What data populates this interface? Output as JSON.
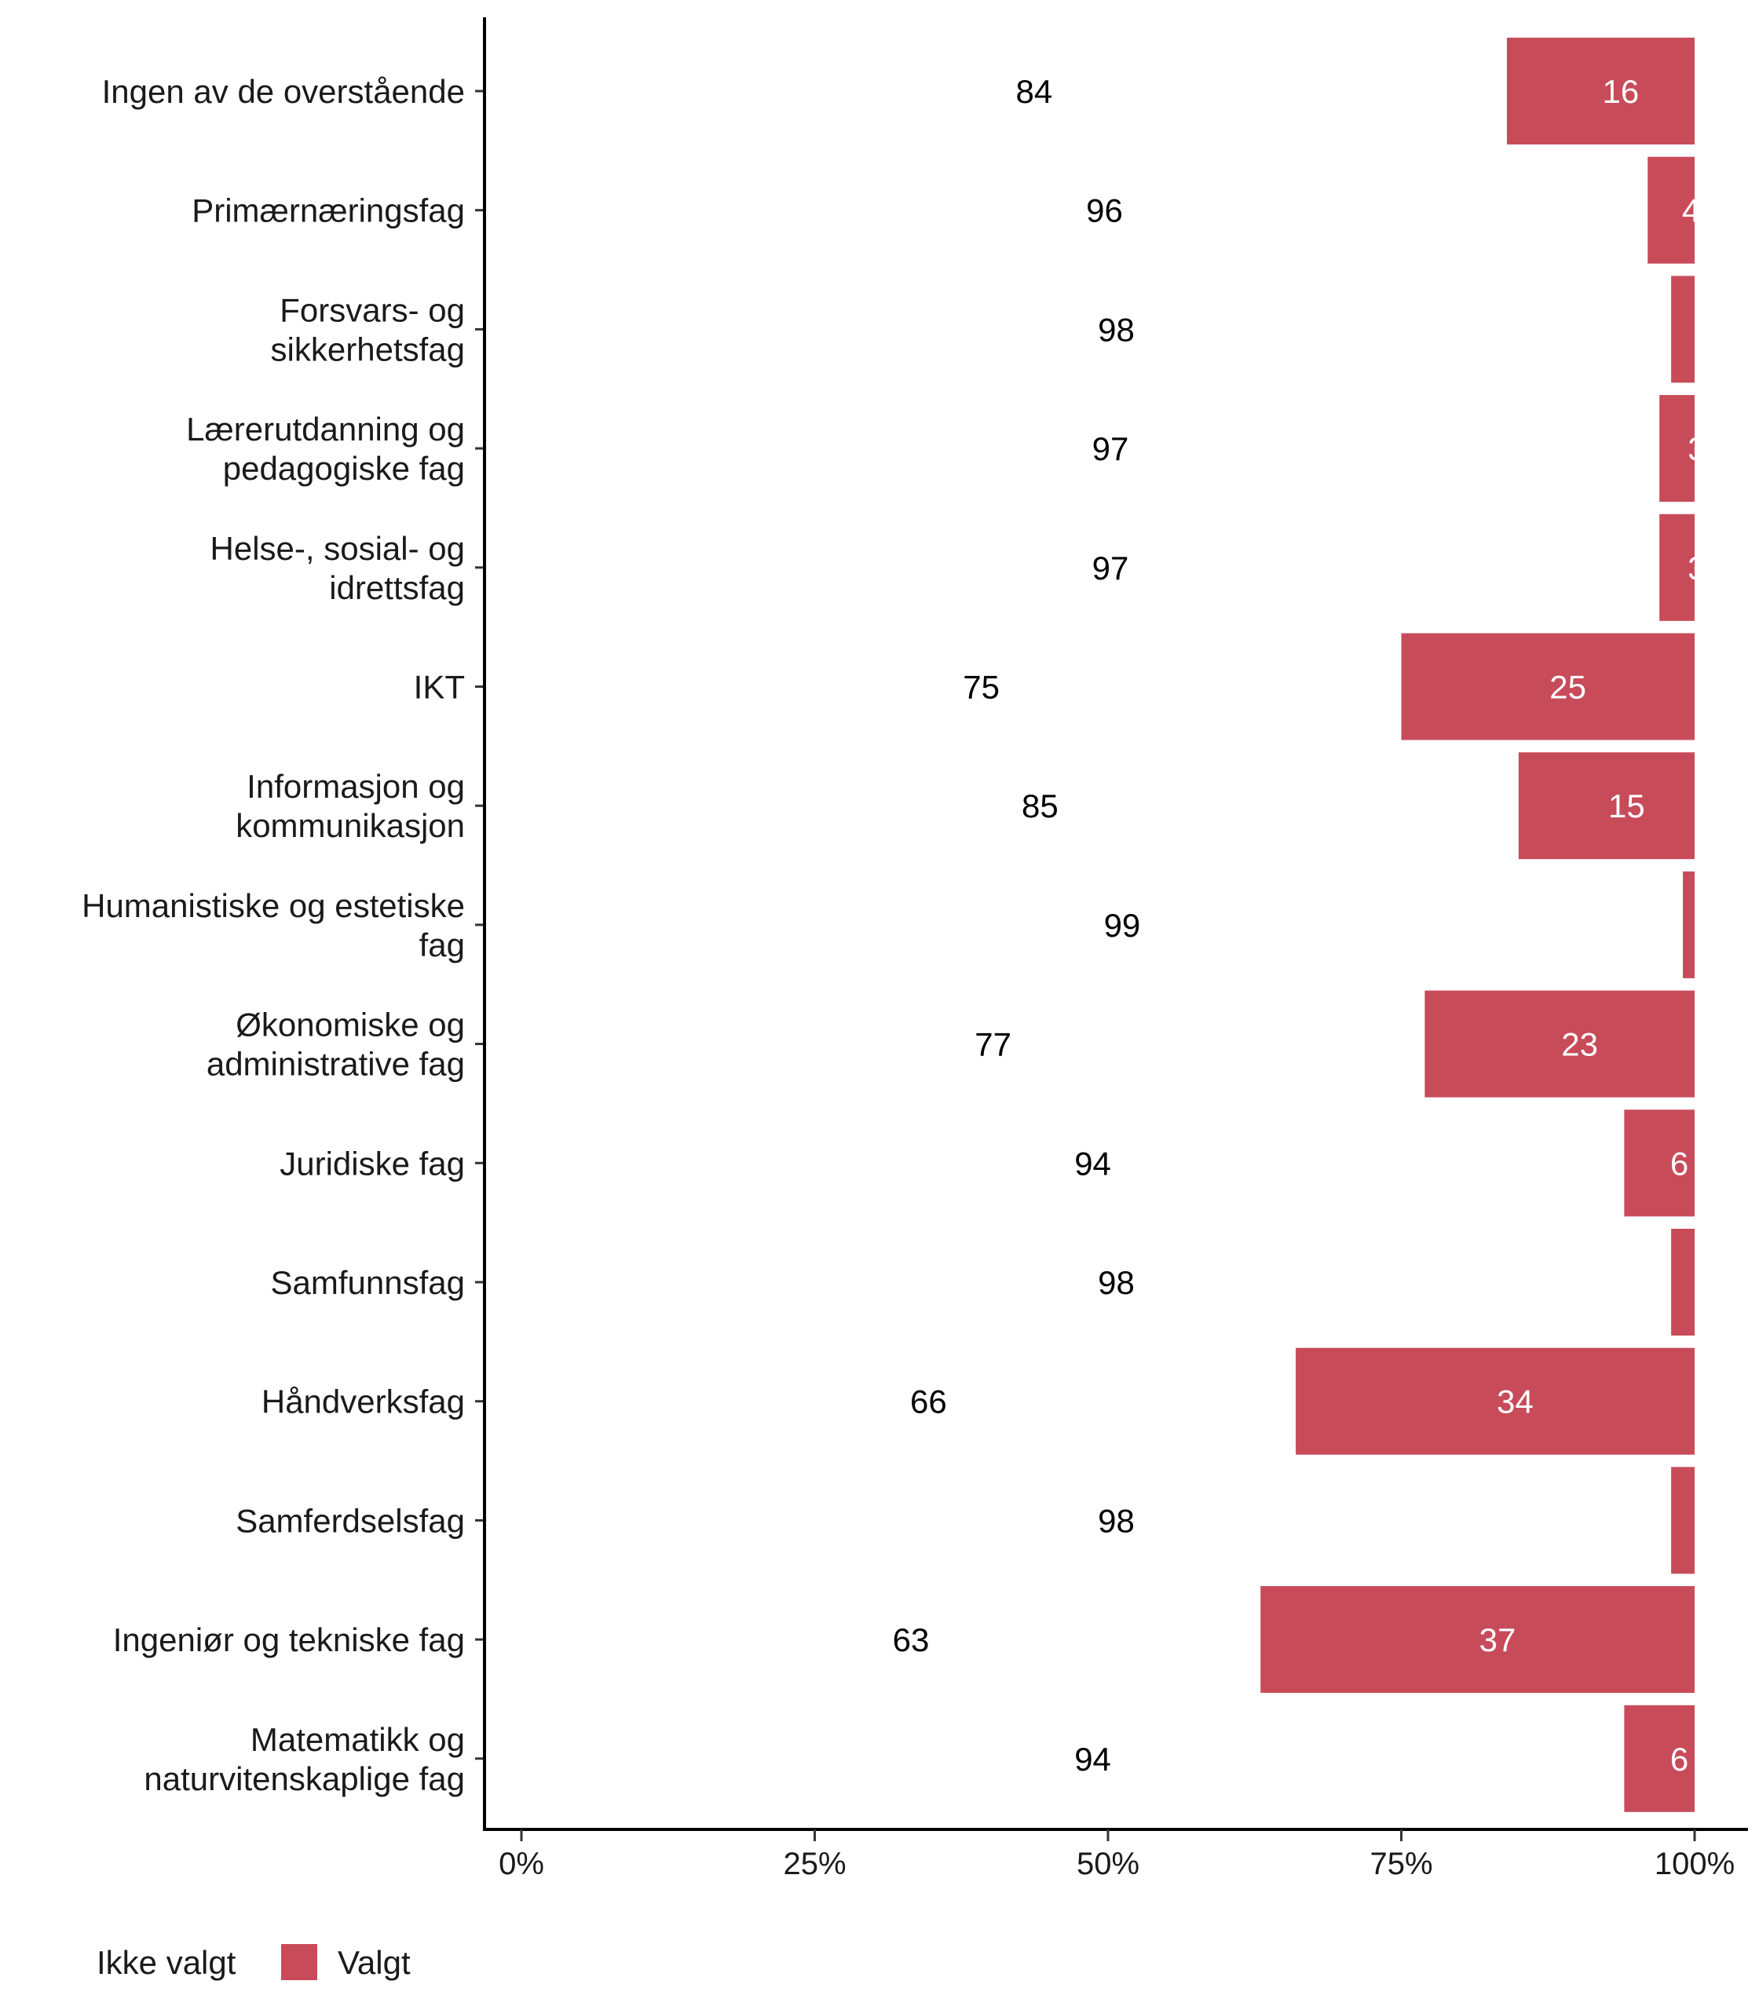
{
  "chart_data": {
    "type": "bar",
    "orientation": "horizontal",
    "stacked": "percent",
    "title": "",
    "xlabel": "",
    "ylabel": "",
    "xlim": [
      0,
      100
    ],
    "x_ticks": [
      "0%",
      "25%",
      "50%",
      "75%",
      "100%"
    ],
    "grid": false,
    "legend_position": "bottom-left",
    "categories": [
      [
        "Ingen av de overstående"
      ],
      [
        "Primærnæringsfag"
      ],
      [
        "Forsvars- og",
        "sikkerhetsfag"
      ],
      [
        "Lærerutdanning og",
        "pedagogiske fag"
      ],
      [
        "Helse-, sosial- og",
        "idrettsfag"
      ],
      [
        "IKT"
      ],
      [
        "Informasjon og",
        "kommunikasjon"
      ],
      [
        "Humanistiske og estetiske",
        "fag"
      ],
      [
        "Økonomiske og",
        "administrative fag"
      ],
      [
        "Juridiske fag"
      ],
      [
        "Samfunnsfag"
      ],
      [
        "Håndverksfag"
      ],
      [
        "Samferdselsfag"
      ],
      [
        "Ingeniør og tekniske fag"
      ],
      [
        "Matematikk og",
        "naturvitenskaplige fag"
      ]
    ],
    "series": [
      {
        "name": "Ikke valgt",
        "color": "#ffffff",
        "values": [
          84,
          96,
          98,
          97,
          97,
          75,
          85,
          99,
          77,
          94,
          98,
          66,
          98,
          63,
          94
        ]
      },
      {
        "name": "Valgt",
        "color": "#c84b5a",
        "values": [
          16,
          4,
          2,
          3,
          3,
          25,
          15,
          1,
          23,
          6,
          2,
          34,
          2,
          37,
          6
        ]
      }
    ]
  }
}
